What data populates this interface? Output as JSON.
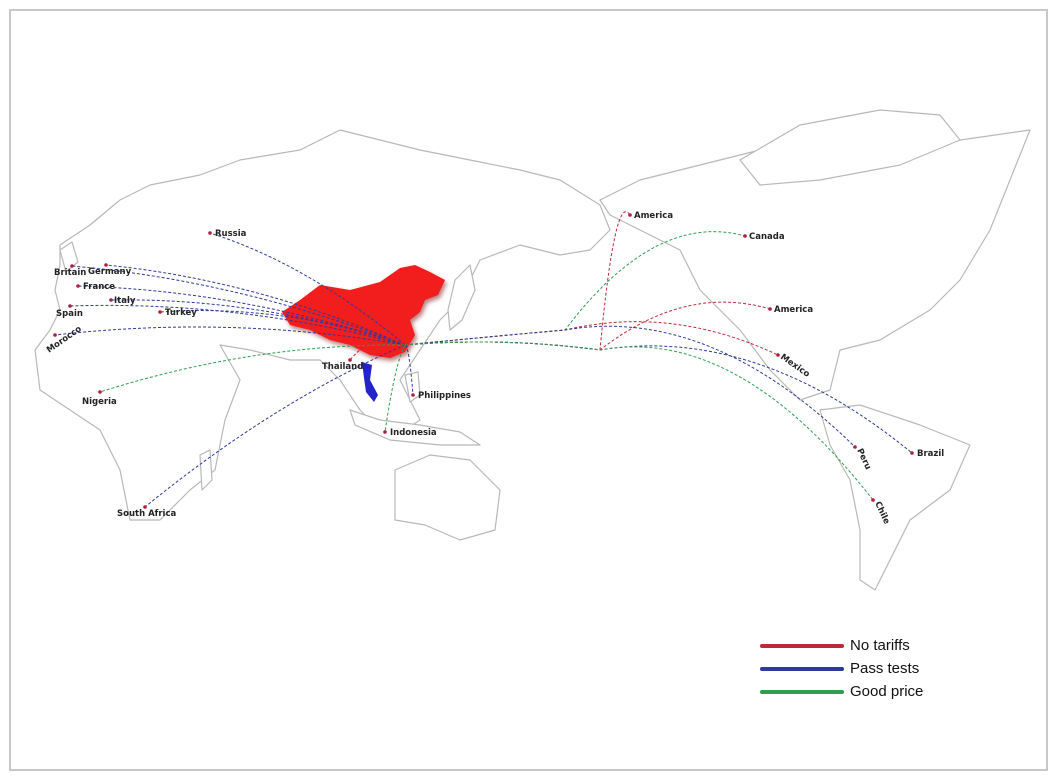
{
  "origin": "China",
  "colors": {
    "no_tariffs": "#c0283a",
    "pass_tests": "#2e3a9a",
    "good_price": "#2f9e50",
    "china_fill": "#f21d1d",
    "vietnam_fill": "#2323c8"
  },
  "legend": [
    {
      "key": "no_tariffs",
      "label": "No tariffs"
    },
    {
      "key": "pass_tests",
      "label": "Pass tests"
    },
    {
      "key": "good_price",
      "label": "Good price"
    }
  ],
  "destinations": [
    {
      "name": "Russia",
      "route": "pass_tests"
    },
    {
      "name": "Britain",
      "route": "pass_tests"
    },
    {
      "name": "Germany",
      "route": "pass_tests"
    },
    {
      "name": "France",
      "route": "pass_tests"
    },
    {
      "name": "Italy",
      "route": "pass_tests"
    },
    {
      "name": "Spain",
      "route": "pass_tests"
    },
    {
      "name": "Morocco",
      "route": "pass_tests"
    },
    {
      "name": "Turkey",
      "route": "pass_tests"
    },
    {
      "name": "Nigeria",
      "route": "good_price"
    },
    {
      "name": "South Africa",
      "route": "pass_tests"
    },
    {
      "name": "Thailand",
      "route": "no_tariffs"
    },
    {
      "name": "Philippines",
      "route": "pass_tests"
    },
    {
      "name": "Indonesia",
      "route": "good_price"
    },
    {
      "name": "America",
      "route": "no_tariffs"
    },
    {
      "name": "Canada",
      "route": "good_price"
    },
    {
      "name": "America",
      "route": "no_tariffs"
    },
    {
      "name": "Mexico",
      "route": "no_tariffs"
    },
    {
      "name": "Brazil",
      "route": "pass_tests"
    },
    {
      "name": "Peru",
      "route": "pass_tests"
    },
    {
      "name": "Chile",
      "route": "good_price"
    }
  ]
}
